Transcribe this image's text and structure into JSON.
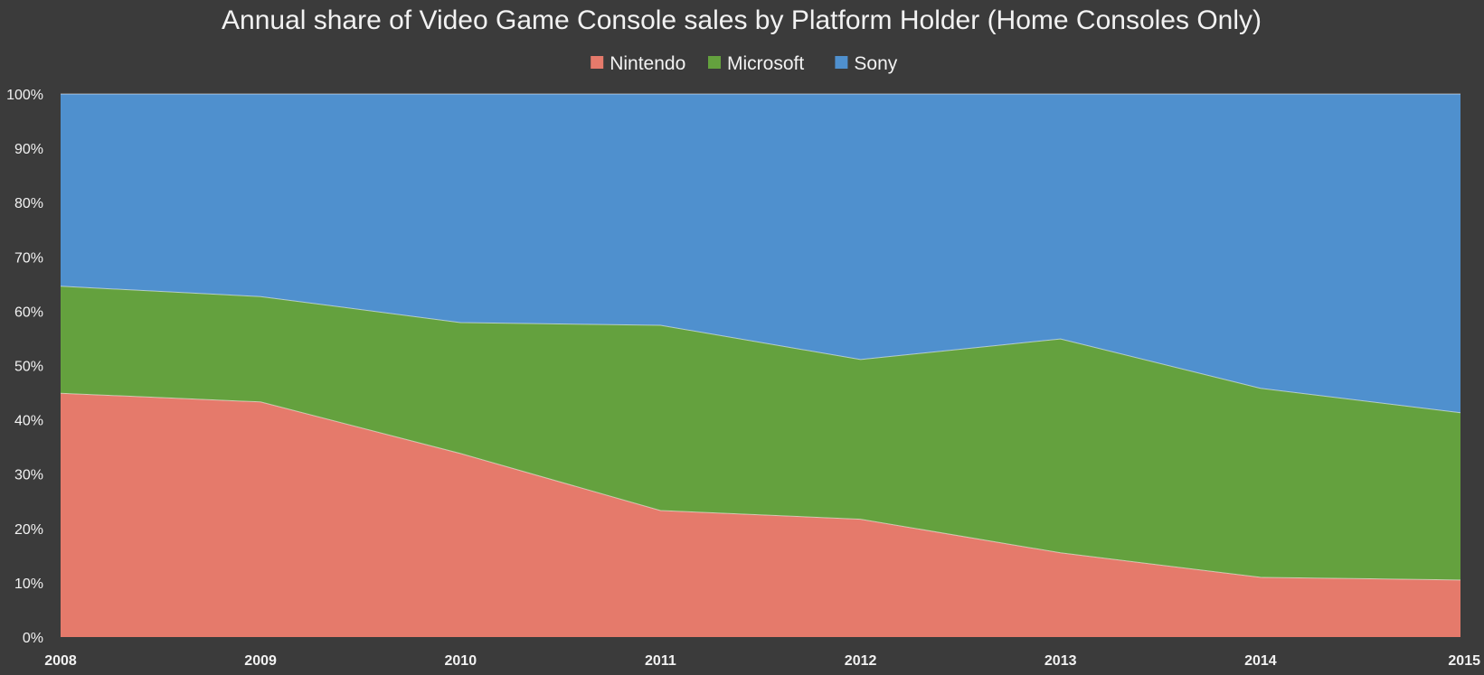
{
  "chart_data": {
    "type": "area",
    "stacked": true,
    "normalized": true,
    "title": "Annual share of Video Game Console sales by Platform Holder (Home Consoles Only)",
    "xlabel": "",
    "ylabel": "",
    "x": [
      "2008",
      "2009",
      "2010",
      "2011",
      "2012",
      "2013",
      "2014",
      "2015"
    ],
    "ylim": [
      0,
      100
    ],
    "yticks": [
      "0%",
      "10%",
      "20%",
      "30%",
      "40%",
      "50%",
      "60%",
      "70%",
      "80%",
      "90%",
      "100%"
    ],
    "legend_position": "top-center",
    "grid": false,
    "series": [
      {
        "name": "Nintendo",
        "color": "#e57a6b",
        "values": [
          44.9,
          43.3,
          33.8,
          23.3,
          21.7,
          15.5,
          11.0,
          10.5
        ]
      },
      {
        "name": "Microsoft",
        "color": "#64a13e",
        "values": [
          19.7,
          19.4,
          24.1,
          34.1,
          29.4,
          39.4,
          34.8,
          30.8
        ]
      },
      {
        "name": "Sony",
        "color": "#4f90ce",
        "values": [
          35.4,
          37.3,
          42.1,
          42.6,
          48.9,
          45.1,
          54.2,
          58.7
        ]
      }
    ]
  }
}
